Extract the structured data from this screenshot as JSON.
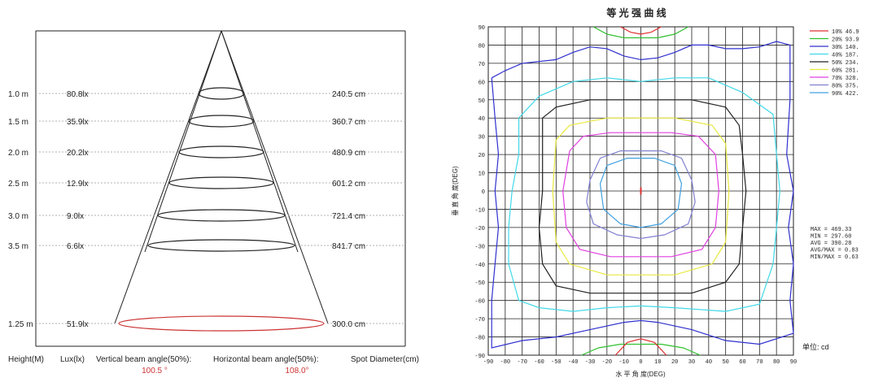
{
  "beam_chart": {
    "rows": [
      {
        "height": "1.0 m",
        "lux": "80.8lx",
        "diameter": "240.5 cm"
      },
      {
        "height": "1.5 m",
        "lux": "35.9lx",
        "diameter": "360.7 cm"
      },
      {
        "height": "2.0 m",
        "lux": "20.2lx",
        "diameter": "480.9 cm"
      },
      {
        "height": "2.5 m",
        "lux": "12.9lx",
        "diameter": "601.2 cm"
      },
      {
        "height": "3.0 m",
        "lux": "9.0lx",
        "diameter": "721.4 cm"
      },
      {
        "height": "3.5 m",
        "lux": "6.6lx",
        "diameter": "841.7 cm"
      }
    ],
    "highlight_row": {
      "height": "1.25 m",
      "lux": "51.9lx",
      "diameter": "300.0 cm",
      "color": "#cc3333"
    },
    "footer": {
      "height_label": "Height(M)",
      "lux_label": "Lux(lx)",
      "vertical_label": "Vertical beam angle(50%):",
      "vertical_value": "100.5 °",
      "horizontal_label": "Horizontal beam angle(50%):",
      "horizontal_value": "108.0°",
      "diameter_label": "Spot Diameter(cm)"
    }
  },
  "chart_data": {
    "type": "contour",
    "title": "等 光 强 曲 线",
    "xlabel": "水 平 角 度(DEG)",
    "ylabel": "垂 直 角 度(DEG)",
    "xlim": [
      -90,
      90
    ],
    "ylim": [
      -90,
      90
    ],
    "xticks": [
      "-90",
      "-80",
      "-70",
      "-60",
      "-50",
      "-40",
      "-30",
      "-20",
      "-10",
      "0",
      "10",
      "20",
      "30",
      "40",
      "50",
      "60",
      "70",
      "80",
      "90"
    ],
    "yticks": [
      "90",
      "80",
      "70",
      "60",
      "50",
      "40",
      "30",
      "20",
      "10",
      "0",
      "-10",
      "-20",
      "-30",
      "-40",
      "-50",
      "-60",
      "-70",
      "-80",
      "-90"
    ],
    "grid": true,
    "unit_label": "单位: cd",
    "legend": [
      {
        "label": "10% 46.9",
        "color": "#e03030",
        "level": 0.1
      },
      {
        "label": "20% 93.9",
        "color": "#30c030",
        "level": 0.2
      },
      {
        "label": "30% 140.",
        "color": "#3030d0",
        "level": 0.3
      },
      {
        "label": "40% 187.",
        "color": "#40d8e8",
        "level": 0.4
      },
      {
        "label": "50% 234.",
        "color": "#202020",
        "level": 0.5
      },
      {
        "label": "60% 281.",
        "color": "#e8e840",
        "level": 0.6
      },
      {
        "label": "70% 328.",
        "color": "#e040e0",
        "level": 0.7
      },
      {
        "label": "80% 375.",
        "color": "#8080d0",
        "level": 0.8
      },
      {
        "label": "90% 422.",
        "color": "#40a0e0",
        "level": 0.9
      }
    ],
    "stats": [
      "MAX = 469.33",
      "MIN = 297.60",
      "AVG = 390.28",
      "AVG/MAX = 0.83",
      "MIN/MAX = 0.63"
    ],
    "contours": [
      {
        "name": "20% top",
        "color": "#30c030",
        "points": [
          [
            -28,
            90
          ],
          [
            -20,
            86
          ],
          [
            -10,
            84
          ],
          [
            0,
            84
          ],
          [
            10,
            84
          ],
          [
            20,
            86
          ],
          [
            28,
            90
          ]
        ]
      },
      {
        "name": "10% top",
        "color": "#e03030",
        "points": [
          [
            -12,
            90
          ],
          [
            -6,
            87
          ],
          [
            0,
            86
          ],
          [
            6,
            87
          ],
          [
            12,
            90
          ]
        ]
      },
      {
        "name": "20% bottom",
        "color": "#30c030",
        "points": [
          [
            -35,
            -90
          ],
          [
            -25,
            -86
          ],
          [
            -12,
            -84
          ],
          [
            0,
            -84
          ],
          [
            12,
            -84
          ],
          [
            25,
            -86
          ],
          [
            35,
            -90
          ]
        ]
      },
      {
        "name": "10% bottom",
        "color": "#e03030",
        "points": [
          [
            -15,
            -90
          ],
          [
            -8,
            -83
          ],
          [
            0,
            -81
          ],
          [
            8,
            -83
          ],
          [
            15,
            -90
          ]
        ]
      },
      {
        "name": "30% outer",
        "color": "#3030d0",
        "points": [
          [
            -88,
            62
          ],
          [
            -80,
            66
          ],
          [
            -70,
            70
          ],
          [
            -50,
            72
          ],
          [
            -40,
            76
          ],
          [
            -30,
            79
          ],
          [
            -20,
            78
          ],
          [
            -10,
            74
          ],
          [
            0,
            72
          ],
          [
            10,
            73
          ],
          [
            20,
            76
          ],
          [
            30,
            80
          ],
          [
            40,
            80
          ],
          [
            50,
            78
          ],
          [
            60,
            78
          ],
          [
            70,
            79
          ],
          [
            80,
            82
          ],
          [
            88,
            80
          ],
          [
            88,
            50
          ],
          [
            86,
            20
          ],
          [
            90,
            0
          ],
          [
            87,
            -20
          ],
          [
            90,
            -40
          ],
          [
            88,
            -60
          ],
          [
            90,
            -78
          ],
          [
            70,
            -84
          ],
          [
            50,
            -82
          ],
          [
            30,
            -76
          ],
          [
            10,
            -72
          ],
          [
            0,
            -71
          ],
          [
            -10,
            -72
          ],
          [
            -30,
            -76
          ],
          [
            -50,
            -80
          ],
          [
            -70,
            -82
          ],
          [
            -88,
            -86
          ],
          [
            -88,
            -60
          ],
          [
            -86,
            -40
          ],
          [
            -84,
            -20
          ],
          [
            -86,
            0
          ],
          [
            -84,
            20
          ],
          [
            -86,
            40
          ],
          [
            -88,
            62
          ]
        ]
      },
      {
        "name": "40%",
        "color": "#40d8e8",
        "points": [
          [
            -72,
            40
          ],
          [
            -60,
            52
          ],
          [
            -40,
            60
          ],
          [
            -20,
            62
          ],
          [
            0,
            60
          ],
          [
            20,
            62
          ],
          [
            40,
            62
          ],
          [
            60,
            54
          ],
          [
            78,
            42
          ],
          [
            80,
            20
          ],
          [
            82,
            0
          ],
          [
            80,
            -20
          ],
          [
            78,
            -40
          ],
          [
            70,
            -62
          ],
          [
            50,
            -66
          ],
          [
            20,
            -64
          ],
          [
            0,
            -63
          ],
          [
            -20,
            -64
          ],
          [
            -40,
            -66
          ],
          [
            -60,
            -64
          ],
          [
            -72,
            -60
          ],
          [
            -78,
            -40
          ],
          [
            -78,
            -20
          ],
          [
            -76,
            0
          ],
          [
            -72,
            20
          ],
          [
            -72,
            40
          ]
        ]
      },
      {
        "name": "50%",
        "color": "#202020",
        "points": [
          [
            -58,
            40
          ],
          [
            -50,
            46
          ],
          [
            -30,
            50
          ],
          [
            0,
            50
          ],
          [
            30,
            50
          ],
          [
            50,
            46
          ],
          [
            58,
            36
          ],
          [
            60,
            20
          ],
          [
            62,
            0
          ],
          [
            60,
            -20
          ],
          [
            58,
            -40
          ],
          [
            50,
            -50
          ],
          [
            30,
            -56
          ],
          [
            0,
            -56
          ],
          [
            -30,
            -56
          ],
          [
            -50,
            -52
          ],
          [
            -58,
            -40
          ],
          [
            -60,
            -20
          ],
          [
            -58,
            0
          ],
          [
            -58,
            20
          ],
          [
            -58,
            40
          ]
        ]
      },
      {
        "name": "60%",
        "color": "#e8e840",
        "points": [
          [
            -50,
            28
          ],
          [
            -42,
            36
          ],
          [
            -20,
            40
          ],
          [
            0,
            40
          ],
          [
            20,
            40
          ],
          [
            42,
            36
          ],
          [
            50,
            26
          ],
          [
            52,
            0
          ],
          [
            50,
            -28
          ],
          [
            42,
            -40
          ],
          [
            20,
            -46
          ],
          [
            0,
            -46
          ],
          [
            -20,
            -46
          ],
          [
            -42,
            -40
          ],
          [
            -50,
            -28
          ],
          [
            -52,
            0
          ],
          [
            -50,
            28
          ]
        ]
      },
      {
        "name": "70%",
        "color": "#e040e0",
        "points": [
          [
            -42,
            22
          ],
          [
            -34,
            30
          ],
          [
            -18,
            32
          ],
          [
            0,
            32
          ],
          [
            18,
            32
          ],
          [
            34,
            30
          ],
          [
            44,
            20
          ],
          [
            46,
            0
          ],
          [
            44,
            -20
          ],
          [
            36,
            -32
          ],
          [
            18,
            -36
          ],
          [
            0,
            -36
          ],
          [
            -18,
            -36
          ],
          [
            -36,
            -32
          ],
          [
            -44,
            -20
          ],
          [
            -46,
            0
          ],
          [
            -42,
            22
          ]
        ]
      },
      {
        "name": "80%",
        "color": "#8080d0",
        "points": [
          [
            -24,
            18
          ],
          [
            -12,
            22
          ],
          [
            0,
            22
          ],
          [
            12,
            22
          ],
          [
            24,
            18
          ],
          [
            30,
            6
          ],
          [
            32,
            -6
          ],
          [
            28,
            -18
          ],
          [
            14,
            -24
          ],
          [
            0,
            -26
          ],
          [
            -14,
            -24
          ],
          [
            -28,
            -18
          ],
          [
            -32,
            -6
          ],
          [
            -30,
            6
          ],
          [
            -24,
            18
          ]
        ]
      },
      {
        "name": "90%",
        "color": "#40a0e0",
        "points": [
          [
            -20,
            14
          ],
          [
            -8,
            18
          ],
          [
            0,
            18
          ],
          [
            8,
            18
          ],
          [
            20,
            14
          ],
          [
            24,
            4
          ],
          [
            22,
            -10
          ],
          [
            12,
            -18
          ],
          [
            0,
            -20
          ],
          [
            -12,
            -18
          ],
          [
            -22,
            -10
          ],
          [
            -24,
            4
          ],
          [
            -20,
            14
          ]
        ]
      },
      {
        "name": "center",
        "color": "#e03030",
        "points": [
          [
            0,
            2
          ],
          [
            0,
            -2
          ]
        ]
      }
    ]
  }
}
